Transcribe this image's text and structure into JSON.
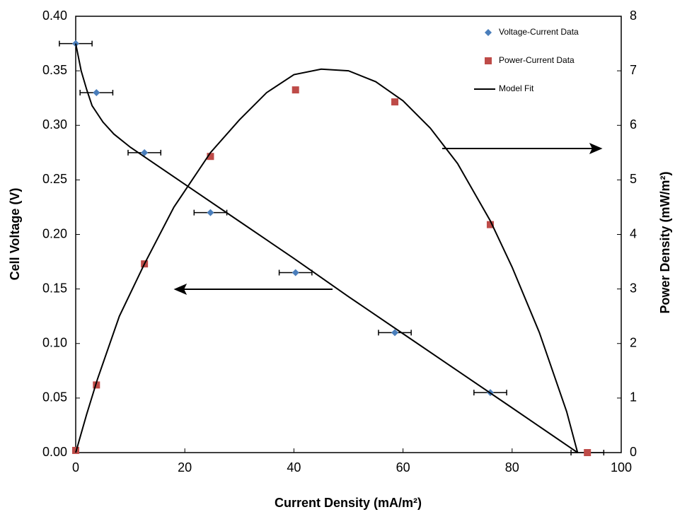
{
  "chart_data": {
    "type": "scatter",
    "xlabel": "Current Density (mA/m²)",
    "ylabel": "Cell Voltage (V)",
    "y2label": "Power Density (mW/m²)",
    "xlim": [
      0,
      100
    ],
    "xticks": [
      0,
      20,
      40,
      60,
      80,
      100
    ],
    "ylim": [
      0,
      0.4
    ],
    "yticks": [
      {
        "value": 0,
        "label": "0.00"
      },
      {
        "value": 0.05,
        "label": "0.05"
      },
      {
        "value": 0.1,
        "label": "0.10"
      },
      {
        "value": 0.15,
        "label": "0.15"
      },
      {
        "value": 0.2,
        "label": "0.20"
      },
      {
        "value": 0.25,
        "label": "0.25"
      },
      {
        "value": 0.3,
        "label": "0.30"
      },
      {
        "value": 0.35,
        "label": "0.35"
      },
      {
        "value": 0.4,
        "label": "0.40"
      }
    ],
    "y2lim": [
      0,
      8
    ],
    "y2ticks": [
      0,
      1,
      2,
      3,
      4,
      5,
      6,
      7,
      8
    ],
    "grid": false,
    "legend": "upper right",
    "series": [
      {
        "name": "Voltage-Current Data",
        "color": "#4a7ebb",
        "marker": "diamond",
        "x": [
          0,
          3.8,
          12.6,
          24.7,
          40.3,
          58.5,
          76,
          93.8
        ],
        "values": [
          0.375,
          0.33,
          0.275,
          0.22,
          0.165,
          0.11,
          0.055,
          0
        ],
        "x_errors": [
          3,
          3,
          3,
          3,
          3,
          3,
          3,
          3
        ]
      },
      {
        "name": "Power-Current Data",
        "color": "#be4b48",
        "marker": "square",
        "axis": "y2",
        "x": [
          0,
          3.8,
          12.6,
          24.7,
          40.3,
          58.5,
          76,
          93.8
        ],
        "values": [
          0.04,
          1.24,
          3.46,
          5.43,
          6.65,
          6.43,
          4.18,
          0
        ]
      },
      {
        "name": "Model Fit",
        "color": "#000000",
        "marker": "line",
        "x": [
          0,
          1,
          2,
          3,
          5,
          7,
          10,
          20,
          30,
          40,
          50,
          60,
          70,
          80,
          92
        ],
        "values": [
          0.375,
          0.35,
          0.333,
          0.318,
          0.303,
          0.292,
          0.28,
          0.246,
          0.212,
          0.178,
          0.143,
          0.109,
          0.075,
          0.041,
          0
        ]
      },
      {
        "color": "#000000",
        "marker": "line",
        "axis": "y2",
        "x": [
          0,
          2,
          4,
          8,
          12.6,
          18,
          24.7,
          30,
          35,
          40,
          45,
          50,
          55,
          60,
          65,
          70,
          76,
          80,
          85,
          90,
          92
        ],
        "values": [
          0,
          0.7,
          1.35,
          2.5,
          3.46,
          4.5,
          5.5,
          6.1,
          6.6,
          6.93,
          7.03,
          7.0,
          6.8,
          6.45,
          5.95,
          5.3,
          4.25,
          3.4,
          2.2,
          0.75,
          0
        ]
      }
    ]
  }
}
